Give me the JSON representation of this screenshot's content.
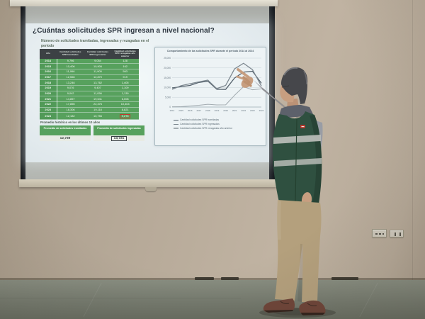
{
  "palette": {
    "slide_green": "#57a15d",
    "table_header_dark": "#3c4144",
    "highlight_red": "#c23b2e",
    "vest_green": "#2f5040",
    "wall_beige": "#b3a695",
    "floor_gray": "#767b6f",
    "screen_gray": "#b1b4af"
  },
  "slide": {
    "title": "¿Cuántas solicitudes SPR ingresan a nivel nacional?",
    "subtitle": "Número de solicitudes tramitadas, ingresadas y rezagadas en el periodo",
    "table": {
      "headers": [
        "Año",
        "Cantidad solicitudes SPR tramitadas",
        "Cantidad solicitudes SPR ingresadas",
        "Cantidad solicitudes SPR rezagadas año anterior"
      ],
      "rows": [
        [
          "2014",
          "9,796",
          "9,054",
          "128"
        ],
        [
          "2015",
          "10,406",
          "10,906",
          "162"
        ],
        [
          "2016",
          "11,066",
          "11,905",
          "563"
        ],
        [
          "2017",
          "12,566",
          "12,870",
          "919"
        ],
        [
          "2018",
          "13,246",
          "13,762",
          "1,405"
        ],
        [
          "2019",
          "9,076",
          "9,407",
          "1,109"
        ],
        [
          "2020",
          "9,042",
          "11,056",
          "1,139"
        ],
        [
          "2021",
          "14,857",
          "19,541",
          "6,008"
        ],
        [
          "2022",
          "17,855",
          "22,376",
          "10,404"
        ],
        [
          "2023",
          "18,306",
          "19,118",
          "8,821"
        ],
        [
          "2024",
          "12,182",
          "10,756",
          "9,276"
        ]
      ],
      "highlight": {
        "row_index": 10,
        "col_index": 3
      }
    },
    "promedio": {
      "caption": "Promedio histórico en los últimos 10 años",
      "boxes": [
        {
          "label": "Promedio de solicitudes tramitadas",
          "value": "12,739"
        },
        {
          "label": "Promedio de solicitudes ingresadas",
          "value": "13,721"
        }
      ]
    }
  },
  "chart_data": {
    "type": "line",
    "title": "Comportamiento de las solicitudes SPR durante el periodo 2014 al 2024",
    "x": [
      "2014",
      "2015",
      "2016",
      "2017",
      "2018",
      "2019",
      "2020",
      "2021",
      "2022",
      "2023",
      "2024"
    ],
    "series": [
      {
        "name": "Cantidad solicitudes SPR tramitadas",
        "color": "#55626d",
        "values": [
          9796,
          10406,
          11066,
          12566,
          13246,
          9076,
          9042,
          14857,
          17855,
          18306,
          12182
        ]
      },
      {
        "name": "Cantidad solicitudes SPR ingresadas",
        "color": "#7d8890",
        "values": [
          9054,
          10906,
          11905,
          12870,
          13762,
          9407,
          11056,
          19541,
          22376,
          19118,
          10756
        ]
      },
      {
        "name": "Cantidad solicitudes SPR rezagadas año anterior",
        "color": "#a2abb0",
        "values": [
          128,
          162,
          563,
          919,
          1405,
          1109,
          1139,
          6008,
          10404,
          8821,
          9276
        ]
      }
    ],
    "xlabel": "",
    "ylabel": "",
    "ylim": [
      0,
      25000
    ],
    "ytick_values": [
      0,
      5000,
      10000,
      15000,
      20000,
      25000
    ],
    "ytick_labels": [
      "0",
      "5,000",
      "10,000",
      "15,000",
      "20,000",
      "25,000"
    ],
    "grid": true,
    "legend_position": "bottom"
  }
}
